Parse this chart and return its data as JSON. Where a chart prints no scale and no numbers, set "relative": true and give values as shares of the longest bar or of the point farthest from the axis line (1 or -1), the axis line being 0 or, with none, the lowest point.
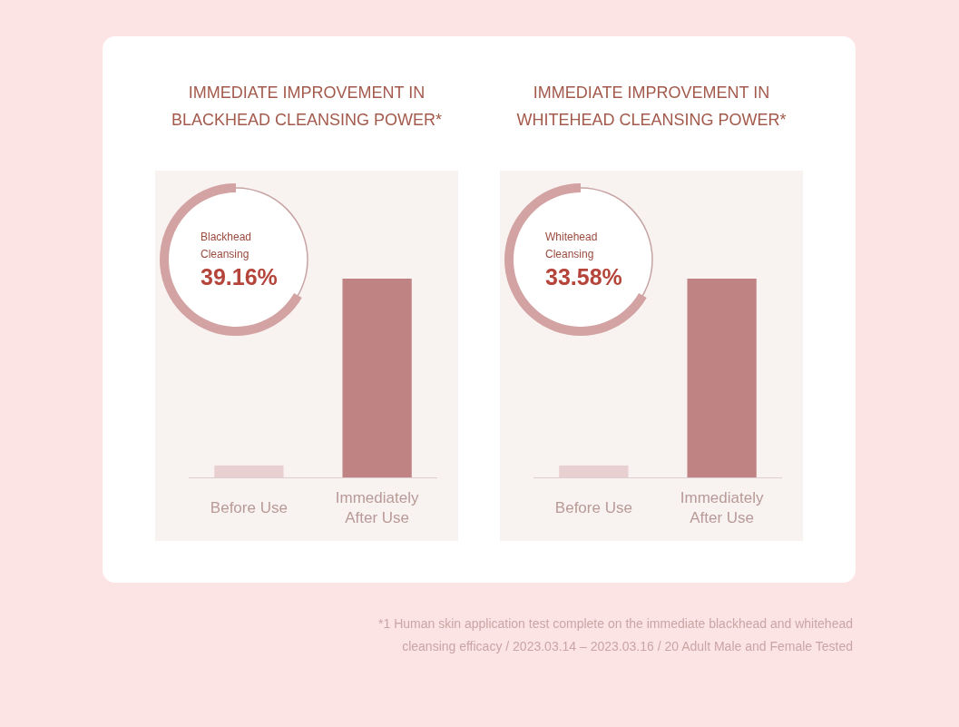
{
  "chart_data": [
    {
      "type": "bar",
      "title": "IMMEDIATE IMPROVEMENT IN\nBLACKHEAD CLEANSING POWER*",
      "categories": [
        "Before Use",
        "Immediately After Use"
      ],
      "values": [
        0.06,
        1
      ],
      "colors": [
        "#e8d0d0",
        "#bf8383"
      ],
      "relative": true,
      "annotations": [
        "Blackhead\nCleansing",
        "39.16%"
      ]
    },
    {
      "type": "bar",
      "title": "IMMEDIATE IMPROVEMENT IN\nWHITEHEAD CLEANSING POWER*",
      "categories": [
        "Before Use",
        "Immediately After Use"
      ],
      "values": [
        0.06,
        1
      ],
      "colors": [
        "#e8d0d0",
        "#bf8383"
      ],
      "relative": true,
      "annotations": [
        "Whitehead\nCleansing",
        "33.58%",
        "*1 Human skin application test complete on the immediate blackhead and whitehead\ncleansing efficacy / 2023.03.14 – 2023.03.16 / 20 Adult Male and Female Tested"
      ]
    }
  ]
}
